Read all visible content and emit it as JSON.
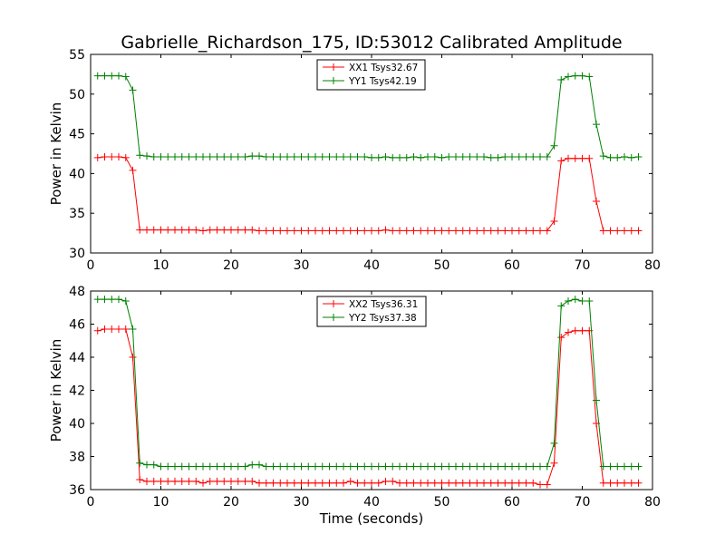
{
  "title": "Gabrielle_Richardson_175, ID:53012 Calibrated Amplitude",
  "xlabel": "Time (seconds)",
  "chart_data": [
    {
      "type": "line",
      "ylabel": "Power in Kelvin",
      "xlim": [
        0,
        80
      ],
      "ylim": [
        30,
        55
      ],
      "xticks": [
        0,
        10,
        20,
        30,
        40,
        50,
        60,
        70,
        80
      ],
      "yticks": [
        30,
        35,
        40,
        45,
        50,
        55
      ],
      "legend_position": "top-center",
      "grid": false,
      "series": [
        {
          "name": "XX1 Tsys32.67",
          "color": "#ff0000",
          "x": [
            1,
            2,
            3,
            4,
            5,
            6,
            7,
            8,
            9,
            10,
            11,
            12,
            13,
            14,
            15,
            16,
            17,
            18,
            19,
            20,
            21,
            22,
            23,
            24,
            25,
            26,
            27,
            28,
            29,
            30,
            31,
            32,
            33,
            34,
            35,
            36,
            37,
            38,
            39,
            40,
            41,
            42,
            43,
            44,
            45,
            46,
            47,
            48,
            49,
            50,
            51,
            52,
            53,
            54,
            55,
            56,
            57,
            58,
            59,
            60,
            61,
            62,
            63,
            64,
            65,
            66,
            67,
            68,
            69,
            70,
            71,
            72,
            73,
            74,
            75,
            76,
            77,
            78
          ],
          "values": [
            42.0,
            42.1,
            42.1,
            42.1,
            42.0,
            40.4,
            32.9,
            32.9,
            32.9,
            32.9,
            32.9,
            32.9,
            32.9,
            32.9,
            32.9,
            32.8,
            32.9,
            32.9,
            32.9,
            32.9,
            32.9,
            32.9,
            32.9,
            32.8,
            32.8,
            32.8,
            32.8,
            32.8,
            32.8,
            32.8,
            32.8,
            32.8,
            32.8,
            32.8,
            32.8,
            32.8,
            32.8,
            32.8,
            32.8,
            32.8,
            32.8,
            32.9,
            32.8,
            32.8,
            32.8,
            32.8,
            32.8,
            32.8,
            32.8,
            32.8,
            32.8,
            32.8,
            32.8,
            32.8,
            32.8,
            32.8,
            32.8,
            32.8,
            32.8,
            32.8,
            32.8,
            32.8,
            32.8,
            32.8,
            32.8,
            34.0,
            41.6,
            41.9,
            41.9,
            41.9,
            41.9,
            36.5,
            32.8,
            32.8,
            32.8,
            32.8,
            32.8,
            32.8
          ]
        },
        {
          "name": "YY1 Tsys42.19",
          "color": "#008000",
          "x": [
            1,
            2,
            3,
            4,
            5,
            6,
            7,
            8,
            9,
            10,
            11,
            12,
            13,
            14,
            15,
            16,
            17,
            18,
            19,
            20,
            21,
            22,
            23,
            24,
            25,
            26,
            27,
            28,
            29,
            30,
            31,
            32,
            33,
            34,
            35,
            36,
            37,
            38,
            39,
            40,
            41,
            42,
            43,
            44,
            45,
            46,
            47,
            48,
            49,
            50,
            51,
            52,
            53,
            54,
            55,
            56,
            57,
            58,
            59,
            60,
            61,
            62,
            63,
            64,
            65,
            66,
            67,
            68,
            69,
            70,
            71,
            72,
            73,
            74,
            75,
            76,
            77,
            78
          ],
          "values": [
            52.3,
            52.3,
            52.3,
            52.3,
            52.2,
            50.5,
            42.3,
            42.2,
            42.1,
            42.1,
            42.1,
            42.1,
            42.1,
            42.1,
            42.1,
            42.1,
            42.1,
            42.1,
            42.1,
            42.1,
            42.1,
            42.1,
            42.2,
            42.2,
            42.1,
            42.1,
            42.1,
            42.1,
            42.1,
            42.1,
            42.1,
            42.1,
            42.1,
            42.1,
            42.1,
            42.1,
            42.1,
            42.1,
            42.1,
            42.0,
            42.0,
            42.1,
            42.0,
            42.0,
            42.0,
            42.1,
            42.0,
            42.1,
            42.1,
            42.0,
            42.1,
            42.1,
            42.1,
            42.1,
            42.1,
            42.1,
            42.0,
            42.0,
            42.1,
            42.1,
            42.1,
            42.1,
            42.1,
            42.1,
            42.1,
            43.5,
            51.8,
            52.2,
            52.3,
            52.3,
            52.2,
            46.2,
            42.2,
            42.0,
            42.0,
            42.1,
            42.0,
            42.1
          ]
        }
      ]
    },
    {
      "type": "line",
      "ylabel": "Power in Kelvin",
      "xlabel": "Time (seconds)",
      "xlim": [
        0,
        80
      ],
      "ylim": [
        36,
        48
      ],
      "xticks": [
        0,
        10,
        20,
        30,
        40,
        50,
        60,
        70,
        80
      ],
      "yticks": [
        36,
        38,
        40,
        42,
        44,
        46,
        48
      ],
      "legend_position": "top-center",
      "grid": false,
      "series": [
        {
          "name": "XX2 Tsys36.31",
          "color": "#ff0000",
          "x": [
            1,
            2,
            3,
            4,
            5,
            6,
            7,
            8,
            9,
            10,
            11,
            12,
            13,
            14,
            15,
            16,
            17,
            18,
            19,
            20,
            21,
            22,
            23,
            24,
            25,
            26,
            27,
            28,
            29,
            30,
            31,
            32,
            33,
            34,
            35,
            36,
            37,
            38,
            39,
            40,
            41,
            42,
            43,
            44,
            45,
            46,
            47,
            48,
            49,
            50,
            51,
            52,
            53,
            54,
            55,
            56,
            57,
            58,
            59,
            60,
            61,
            62,
            63,
            64,
            65,
            66,
            67,
            68,
            69,
            70,
            71,
            72,
            73,
            74,
            75,
            76,
            77,
            78
          ],
          "values": [
            45.6,
            45.7,
            45.7,
            45.7,
            45.7,
            44.0,
            36.6,
            36.5,
            36.5,
            36.5,
            36.5,
            36.5,
            36.5,
            36.5,
            36.5,
            36.4,
            36.5,
            36.5,
            36.5,
            36.5,
            36.5,
            36.5,
            36.5,
            36.4,
            36.4,
            36.4,
            36.4,
            36.4,
            36.4,
            36.4,
            36.4,
            36.4,
            36.4,
            36.4,
            36.4,
            36.4,
            36.5,
            36.4,
            36.4,
            36.4,
            36.4,
            36.5,
            36.5,
            36.4,
            36.4,
            36.4,
            36.4,
            36.4,
            36.4,
            36.4,
            36.4,
            36.4,
            36.4,
            36.4,
            36.4,
            36.4,
            36.4,
            36.4,
            36.4,
            36.4,
            36.4,
            36.4,
            36.4,
            36.3,
            36.3,
            37.6,
            45.2,
            45.5,
            45.6,
            45.6,
            45.6,
            40.0,
            36.4,
            36.4,
            36.4,
            36.4,
            36.4,
            36.4
          ]
        },
        {
          "name": "YY2 Tsys37.38",
          "color": "#008000",
          "x": [
            1,
            2,
            3,
            4,
            5,
            6,
            7,
            8,
            9,
            10,
            11,
            12,
            13,
            14,
            15,
            16,
            17,
            18,
            19,
            20,
            21,
            22,
            23,
            24,
            25,
            26,
            27,
            28,
            29,
            30,
            31,
            32,
            33,
            34,
            35,
            36,
            37,
            38,
            39,
            40,
            41,
            42,
            43,
            44,
            45,
            46,
            47,
            48,
            49,
            50,
            51,
            52,
            53,
            54,
            55,
            56,
            57,
            58,
            59,
            60,
            61,
            62,
            63,
            64,
            65,
            66,
            67,
            68,
            69,
            70,
            71,
            72,
            73,
            74,
            75,
            76,
            77,
            78
          ],
          "values": [
            47.5,
            47.5,
            47.5,
            47.5,
            47.4,
            45.7,
            37.6,
            37.5,
            37.5,
            37.4,
            37.4,
            37.4,
            37.4,
            37.4,
            37.4,
            37.4,
            37.4,
            37.4,
            37.4,
            37.4,
            37.4,
            37.4,
            37.5,
            37.5,
            37.4,
            37.4,
            37.4,
            37.4,
            37.4,
            37.4,
            37.4,
            37.4,
            37.4,
            37.4,
            37.4,
            37.4,
            37.4,
            37.4,
            37.4,
            37.4,
            37.4,
            37.4,
            37.4,
            37.4,
            37.4,
            37.4,
            37.4,
            37.4,
            37.4,
            37.4,
            37.4,
            37.4,
            37.4,
            37.4,
            37.4,
            37.4,
            37.4,
            37.4,
            37.4,
            37.4,
            37.4,
            37.4,
            37.4,
            37.4,
            37.4,
            38.8,
            47.1,
            47.4,
            47.5,
            47.4,
            47.4,
            41.4,
            37.4,
            37.4,
            37.4,
            37.4,
            37.4,
            37.4
          ]
        }
      ]
    }
  ]
}
